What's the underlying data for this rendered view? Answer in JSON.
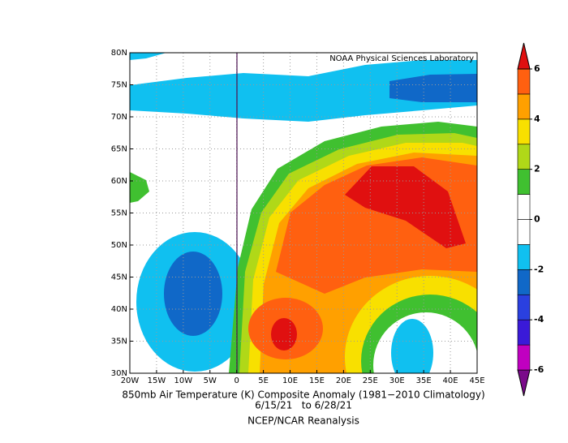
{
  "chart_data": {
    "type": "map",
    "credit": "NOAA Physical Sciences Laboratory",
    "caption": [
      "850mb Air Temperature (K) Composite Anomaly (1981−2010 Climatology)",
      "6/15/21   to 6/28/21",
      "NCEP/NCAR Reanalysis"
    ],
    "xlim": [
      -20,
      45
    ],
    "ylim": [
      30,
      80
    ],
    "xticks": [
      {
        "value": -20,
        "label": "20W"
      },
      {
        "value": -15,
        "label": "15W"
      },
      {
        "value": -10,
        "label": "10W"
      },
      {
        "value": -5,
        "label": "5W"
      },
      0,
      {
        "value": 5,
        "label": "5E"
      },
      {
        "value": 10,
        "label": "10E"
      },
      {
        "value": 15,
        "label": "15E"
      },
      {
        "value": 20,
        "label": "20E"
      },
      {
        "value": 25,
        "label": "25E"
      },
      {
        "value": 30,
        "label": "30E"
      },
      {
        "value": 35,
        "label": "35E"
      },
      {
        "value": 40,
        "label": "40E"
      },
      {
        "value": 45,
        "label": "45E"
      }
    ],
    "yticks": [
      {
        "value": 30,
        "label": "30N"
      },
      {
        "value": 35,
        "label": "35N"
      },
      {
        "value": 40,
        "label": "40N"
      },
      {
        "value": 45,
        "label": "45N"
      },
      {
        "value": 50,
        "label": "50N"
      },
      {
        "value": 55,
        "label": "55N"
      },
      {
        "value": 60,
        "label": "60N"
      },
      {
        "value": 65,
        "label": "65N"
      },
      {
        "value": 70,
        "label": "70N"
      },
      {
        "value": 75,
        "label": "75N"
      },
      {
        "value": 80,
        "label": "80N"
      }
    ],
    "grid": true,
    "colorbar": {
      "levels": [
        -6,
        -5,
        -4,
        -3,
        -2,
        -1,
        0,
        1,
        2,
        3,
        4,
        5,
        6
      ],
      "colors": [
        "#7a0a8a",
        "#c000c0",
        "#3a1ad8",
        "#2a40e0",
        "#1068c8",
        "#10c0f0",
        "#ffffff",
        "#ffffff",
        "#40c030",
        "#b0d818",
        "#f8e000",
        "#ffa000",
        "#ff6010",
        "#e01010"
      ],
      "ticks": [
        -6,
        -4,
        -2,
        0,
        2,
        4,
        6
      ]
    }
  }
}
